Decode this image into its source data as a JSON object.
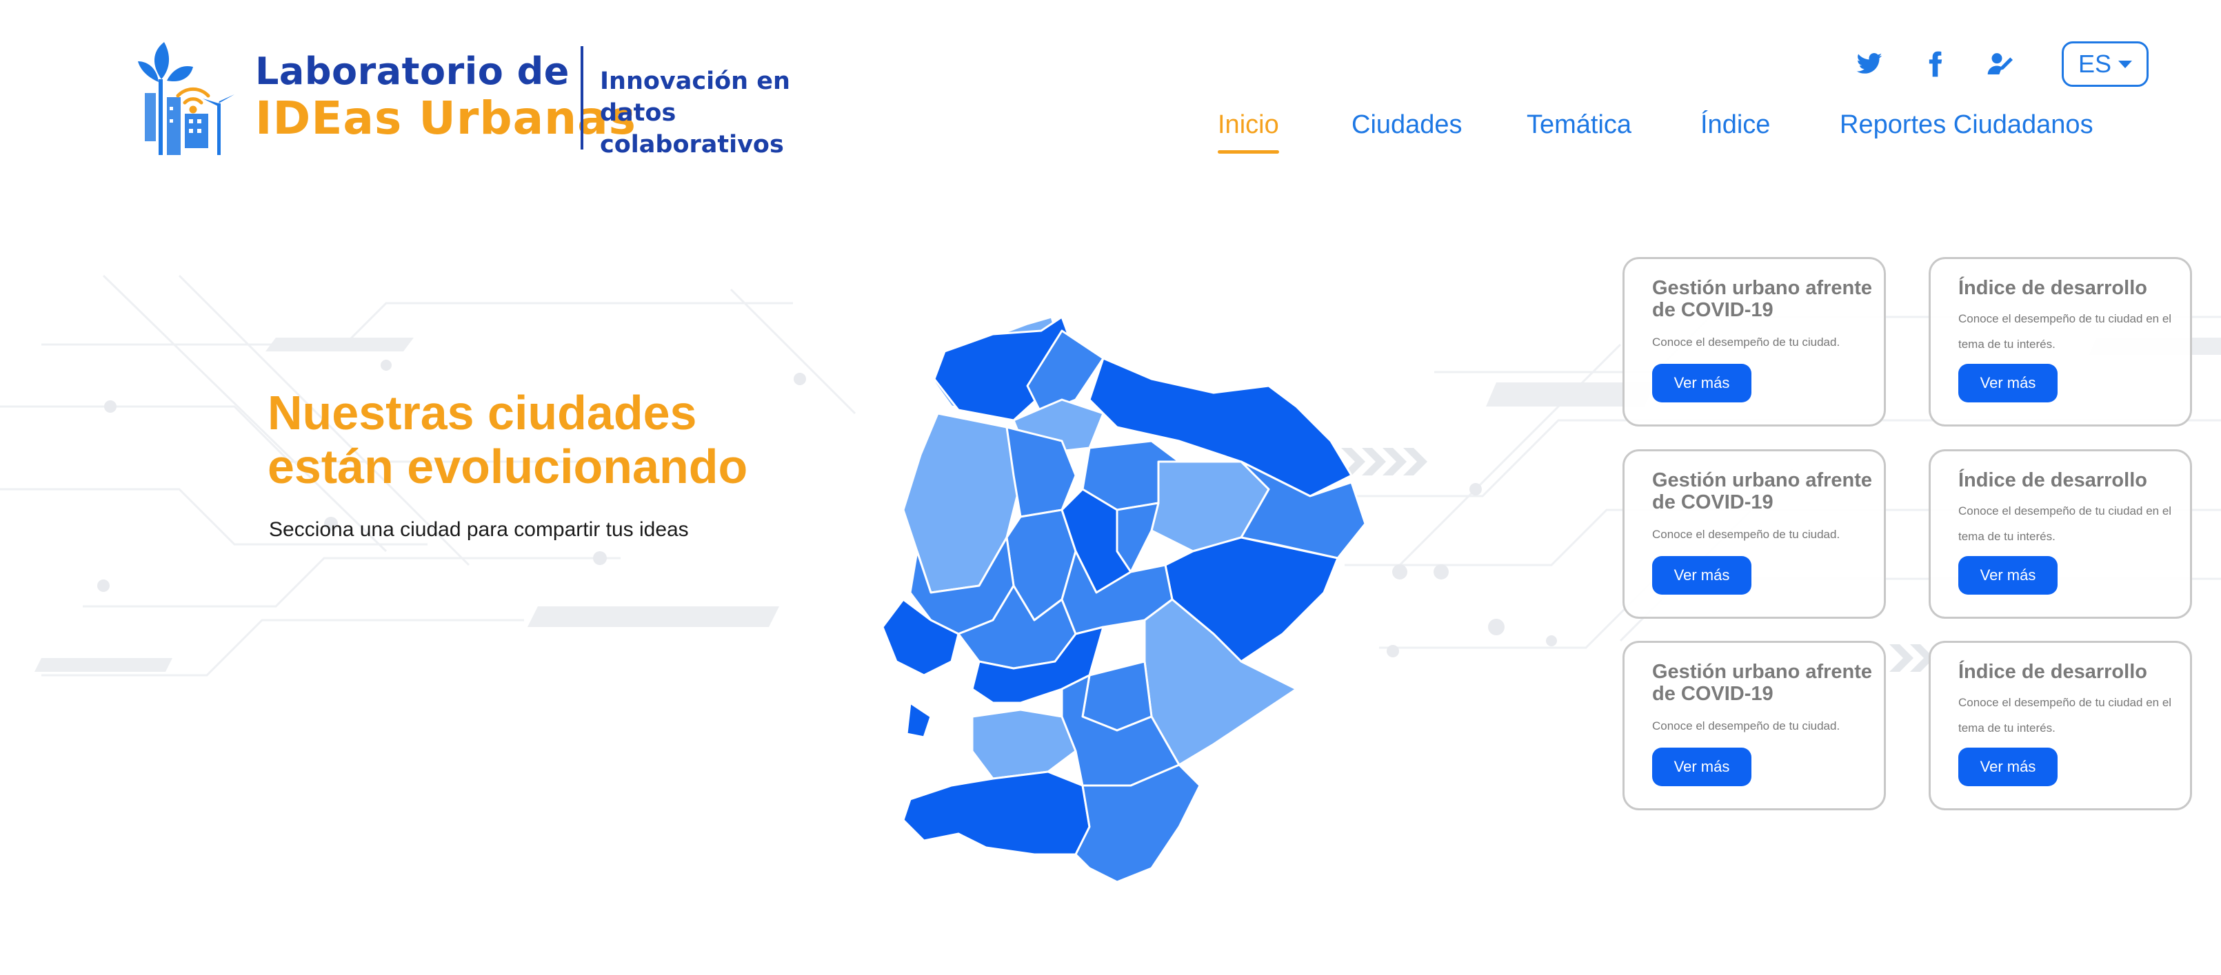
{
  "header": {
    "logo": {
      "title_line1": "Laboratorio de",
      "title_line2": "IDEas Urbanas",
      "tagline_line1": "Innovación en datos",
      "tagline_line2": "colaborativos"
    },
    "social": [
      {
        "icon": "twitter-icon"
      },
      {
        "icon": "facebook-icon"
      },
      {
        "icon": "user-pen-icon"
      }
    ],
    "language": {
      "selected": "ES"
    }
  },
  "nav": {
    "items": [
      {
        "label": "Inicio",
        "active": true
      },
      {
        "label": "Ciudades",
        "active": false
      },
      {
        "label": "Temática",
        "active": false
      },
      {
        "label": "Índice",
        "active": false
      },
      {
        "label": "Reportes Ciudadanos",
        "active": false
      }
    ]
  },
  "hero": {
    "title_line1": "Nuestras ciudades",
    "title_line2": "están evolucionando",
    "subtitle": "Secciona una ciudad para compartir tus ideas"
  },
  "map": {
    "colors": {
      "dark": "#0a5ff0",
      "medium": "#3a85f2",
      "light": "#76aef7"
    }
  },
  "cards": [
    {
      "title": "Gestión urbano afrente de COVID-19",
      "desc": "Conoce el desempeño de tu ciudad.",
      "button": "Ver más"
    },
    {
      "title": "Índice de desarrollo",
      "desc": "Conoce el desempeño de tu ciudad en el tema de tu interés.",
      "button": "Ver más"
    },
    {
      "title": "Gestión urbano afrente de COVID-19",
      "desc": "Conoce el desempeño de tu ciudad.",
      "button": "Ver más"
    },
    {
      "title": "Índice de desarrollo",
      "desc": "Conoce el desempeño de tu ciudad en el tema de tu interés.",
      "button": "Ver más"
    },
    {
      "title": "Gestión urbano afrente de COVID-19",
      "desc": "Conoce el desempeño de tu ciudad.",
      "button": "Ver más"
    },
    {
      "title": "Índice de desarrollo",
      "desc": "Conoce el desempeño de tu ciudad en el tema de tu interés.",
      "button": "Ver más"
    }
  ],
  "colors": {
    "accent": "#f5a11c",
    "brand": "#1b3fa8",
    "link": "#1e78e4",
    "button": "#0d62f2"
  }
}
